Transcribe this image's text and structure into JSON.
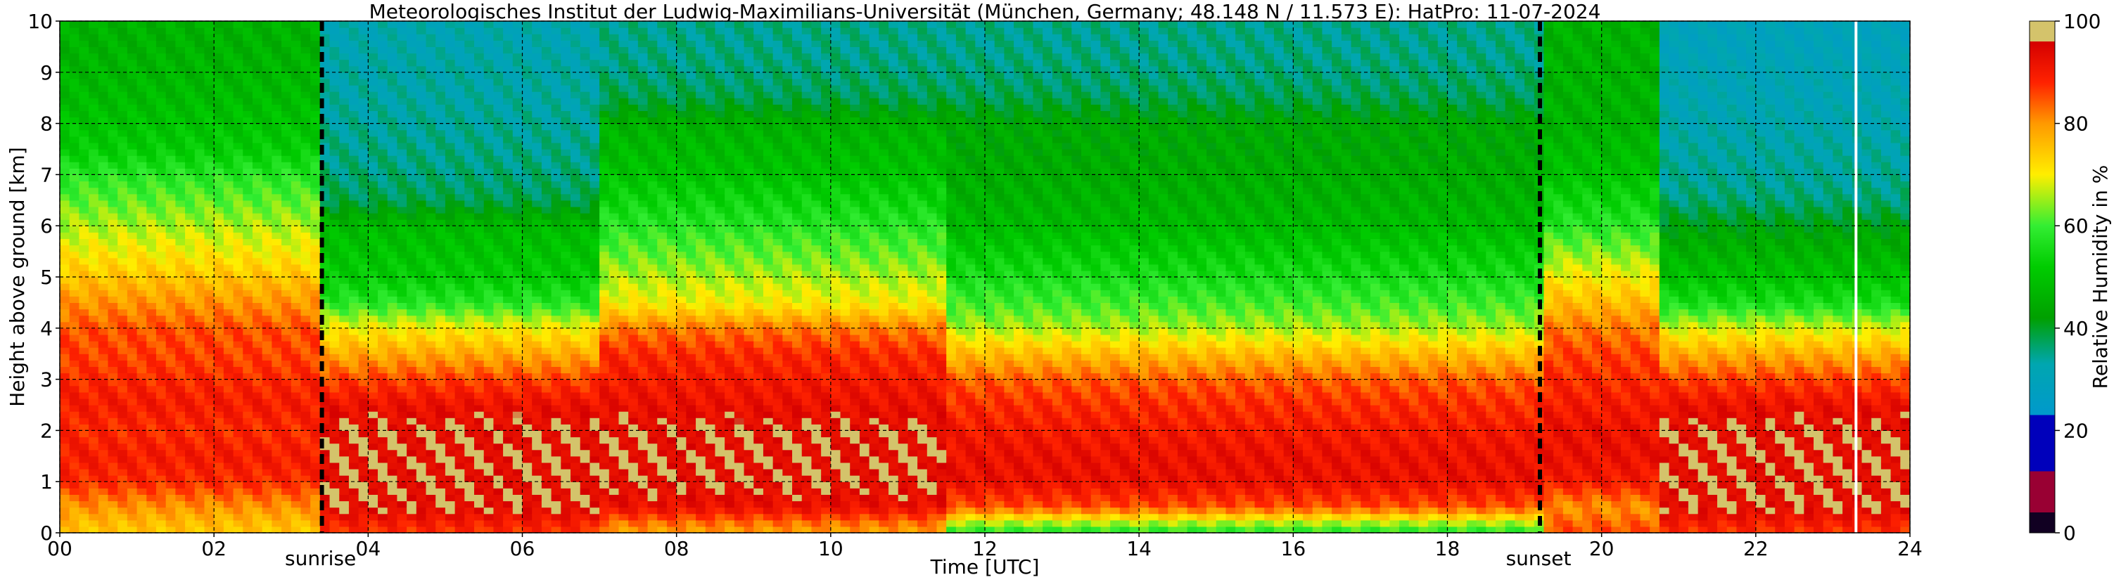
{
  "chart_data": {
    "type": "heatmap",
    "title": "Meteorologisches Institut der Ludwig-Maximilians-Universität (München, Germany; 48.148 N / 11.573 E):    HatPro: 11-07-2024",
    "xlabel": "Time [UTC]",
    "ylabel": "Height above ground [km]",
    "x_range": [
      0,
      24
    ],
    "y_range": [
      0,
      10
    ],
    "x_ticks": [
      "00",
      "02",
      "04",
      "06",
      "08",
      "10",
      "12",
      "14",
      "16",
      "18",
      "20",
      "22",
      "24"
    ],
    "x_tick_values": [
      0,
      2,
      4,
      6,
      8,
      10,
      12,
      14,
      16,
      18,
      20,
      22,
      24
    ],
    "y_ticks": [
      "0",
      "1",
      "2",
      "3",
      "4",
      "5",
      "6",
      "7",
      "8",
      "9",
      "10"
    ],
    "y_tick_values": [
      0,
      1,
      2,
      3,
      4,
      5,
      6,
      7,
      8,
      9,
      10
    ],
    "grid": true,
    "colorbar": {
      "label": "Relative Humidity in %",
      "range": [
        0,
        100
      ],
      "ticks": [
        "0",
        "20",
        "40",
        "60",
        "80",
        "100"
      ],
      "tick_values": [
        0,
        20,
        40,
        60,
        80,
        100
      ]
    },
    "markers": [
      {
        "label": "sunrise",
        "time_utc": 3.4
      },
      {
        "label": "sunset",
        "time_utc": 19.2
      }
    ],
    "data_gap_time_utc": 23.3,
    "series_description_levels_km": [
      0.1,
      0.5,
      1,
      1.5,
      2,
      2.5,
      3,
      3.5,
      4,
      4.5,
      5,
      5.5,
      6,
      6.5,
      7,
      7.5,
      8,
      8.5,
      9,
      9.5,
      10
    ],
    "rh_profiles_percent": {
      "night_00_03": [
        75,
        80,
        88,
        90,
        88,
        90,
        88,
        86,
        85,
        80,
        75,
        70,
        66,
        62,
        58,
        52,
        50,
        48,
        47,
        46,
        46
      ],
      "morning_04_07": [
        88,
        95,
        95,
        95,
        95,
        92,
        86,
        78,
        70,
        58,
        52,
        50,
        48,
        38,
        36,
        35,
        34,
        33,
        33,
        32,
        32
      ],
      "day_08_11": [
        80,
        92,
        95,
        95,
        95,
        92,
        90,
        88,
        82,
        70,
        66,
        62,
        58,
        54,
        50,
        48,
        46,
        38,
        36,
        35,
        35
      ],
      "afternoon_12_19": [
        60,
        85,
        92,
        92,
        90,
        88,
        84,
        76,
        66,
        60,
        56,
        52,
        48,
        46,
        45,
        44,
        44,
        38,
        36,
        35,
        35
      ],
      "evening_19_20": [
        85,
        80,
        90,
        92,
        92,
        90,
        88,
        86,
        82,
        76,
        70,
        64,
        58,
        54,
        50,
        48,
        46,
        46,
        46,
        46,
        46
      ],
      "late_21_24": [
        88,
        95,
        95,
        95,
        95,
        92,
        86,
        78,
        68,
        56,
        50,
        46,
        42,
        36,
        34,
        33,
        32,
        31,
        31,
        30,
        30
      ]
    }
  }
}
